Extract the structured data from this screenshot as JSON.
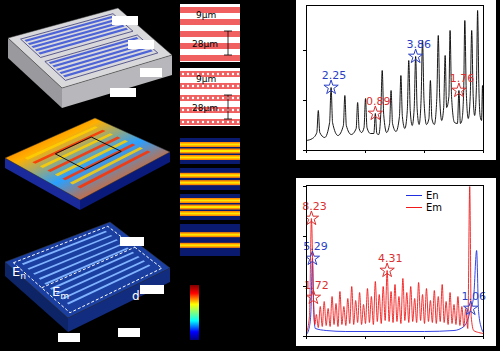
{
  "chart_data": [
    {
      "type": "line",
      "tick_labels": false,
      "marker": "star",
      "xlim": [
        0,
        180
      ],
      "ylim": [
        0,
        145
      ],
      "xticks": [
        0,
        60,
        120,
        180
      ],
      "yticks": [
        0,
        50,
        100
      ],
      "series": [
        {
          "color": "#000000",
          "x": [
            0,
            6,
            10.5,
            12,
            13.5,
            18.5,
            23.5,
            25,
            26.5,
            32,
            37.5,
            39,
            40.5,
            45.5,
            50.5,
            52,
            53.5,
            56,
            58.5,
            60,
            61.5,
            65,
            68.5,
            70,
            71.5,
            73.5,
            75.5,
            77,
            78.5,
            81.5,
            84.5,
            86,
            87.5,
            91,
            94.5,
            96,
            97.5,
            100,
            102.5,
            104,
            105.5,
            107.5,
            109.5,
            111,
            112.5,
            114.5,
            116.5,
            118,
            119.5,
            122,
            124.5,
            126,
            127.5,
            130,
            132.5,
            134,
            135.5,
            137.5,
            139.5,
            141,
            142.5,
            144.8,
            146,
            147.5,
            150.5,
            153.5,
            155,
            156.5,
            158,
            159.8,
            161,
            162.5,
            164.5,
            166.5,
            168,
            169.5,
            171,
            172.8,
            174,
            175.3,
            176.5,
            178,
            179,
            180
          ],
          "values": [
            10,
            12,
            18,
            40,
            18,
            13,
            28,
            63,
            28,
            15,
            25,
            55,
            25,
            16,
            22,
            48,
            22,
            18,
            23,
            52,
            23,
            17,
            17,
            37,
            17,
            16,
            36,
            80,
            36,
            18,
            27,
            60,
            27,
            19,
            34,
            75,
            34,
            22,
            40,
            90,
            40,
            25,
            42,
            94,
            42,
            26,
            50,
            110,
            50,
            26,
            32,
            70,
            32,
            26,
            52,
            115,
            52,
            30,
            43,
            95,
            43,
            54,
            120,
            54,
            28,
            27,
            60,
            27,
            30,
            58,
            130,
            58,
            32,
            54,
            120,
            54,
            35,
            63,
            140,
            63,
            35,
            30,
            65,
            30
          ]
        }
      ],
      "annotations": [
        {
          "x": 25,
          "y": 63,
          "text": "2.25",
          "color": "#2a3fc6"
        },
        {
          "x": 70,
          "y": 37,
          "text": "0.89",
          "color": "#d93030"
        },
        {
          "x": 111,
          "y": 94,
          "text": "3.86",
          "color": "#2a3fc6"
        },
        {
          "x": 155,
          "y": 60,
          "text": "1.76",
          "color": "#d93030"
        }
      ]
    },
    {
      "type": "line",
      "tick_labels": false,
      "marker": "star",
      "legend": "top",
      "xlim": [
        0,
        180
      ],
      "ylim": [
        0,
        151
      ],
      "xticks": [
        0,
        60,
        120,
        180
      ],
      "yticks": [
        0,
        50,
        100,
        150
      ],
      "series": [
        {
          "name": "En",
          "color": "#1f2fe0",
          "x": [
            0,
            3,
            4.5,
            6,
            7.5,
            9,
            20,
            40,
            80,
            120,
            150,
            160,
            165,
            167,
            170,
            173,
            175,
            178,
            180
          ],
          "values": [
            2,
            10,
            25,
            78,
            22,
            8,
            6,
            5,
            5,
            5,
            6,
            10,
            20,
            28,
            40,
            86,
            25,
            8,
            4
          ]
        },
        {
          "name": "Em",
          "color": "#f01a1a",
          "x": [
            0,
            3,
            5,
            7,
            8.5,
            10,
            12,
            14,
            16,
            18,
            20,
            22,
            24,
            26,
            28,
            30,
            32,
            34,
            36,
            38,
            40,
            42,
            44,
            46,
            48,
            50,
            52,
            54,
            56,
            58,
            60,
            62,
            64,
            66,
            68,
            70,
            72,
            74,
            76,
            78,
            80,
            82,
            84,
            86,
            88,
            90,
            92,
            94,
            96,
            98,
            100,
            102,
            104,
            106,
            108,
            110,
            112,
            114,
            116,
            118,
            120,
            122,
            124,
            126,
            128,
            130,
            132,
            134,
            136,
            138,
            140,
            142,
            144,
            146,
            148,
            150,
            152,
            154,
            156,
            158,
            160,
            162,
            164,
            166,
            167.5,
            170,
            175,
            180
          ],
          "values": [
            4,
            20,
            118,
            39,
            12,
            22,
            9,
            30,
            10,
            35,
            11,
            28,
            10,
            40,
            12,
            33,
            10,
            45,
            12,
            30,
            11,
            38,
            13,
            50,
            12,
            36,
            14,
            44,
            12,
            32,
            13,
            48,
            14,
            40,
            12,
            55,
            15,
            42,
            13,
            50,
            16,
            66,
            15,
            45,
            14,
            52,
            15,
            40,
            13,
            58,
            16,
            44,
            14,
            50,
            15,
            38,
            14,
            54,
            16,
            42,
            13,
            48,
            15,
            36,
            14,
            46,
            13,
            40,
            15,
            52,
            14,
            35,
            12,
            44,
            13,
            32,
            12,
            40,
            11,
            30,
            10,
            28,
            8,
            150,
            20,
            6,
            4,
            3
          ]
        }
      ],
      "annotations": [
        {
          "x": 5,
          "y": 118,
          "text": "8.23",
          "color": "#d93030"
        },
        {
          "x": 6,
          "y": 78,
          "text": "5.29",
          "color": "#2a3fc6"
        },
        {
          "x": 7,
          "y": 39,
          "text": "1.72",
          "color": "#d93030"
        },
        {
          "x": 82,
          "y": 66,
          "text": "4.31",
          "color": "#d93030"
        },
        {
          "x": 167,
          "y": 28,
          "text": "1.06",
          "color": "#2a3fc6"
        }
      ]
    }
  ],
  "diagram": {
    "stripe_panels": [
      {
        "gap": "9μm",
        "period": "28μm"
      },
      {
        "gap": "9μm",
        "period": "28μm"
      }
    ],
    "field_labels": [
      "En",
      "Em",
      "d"
    ]
  }
}
